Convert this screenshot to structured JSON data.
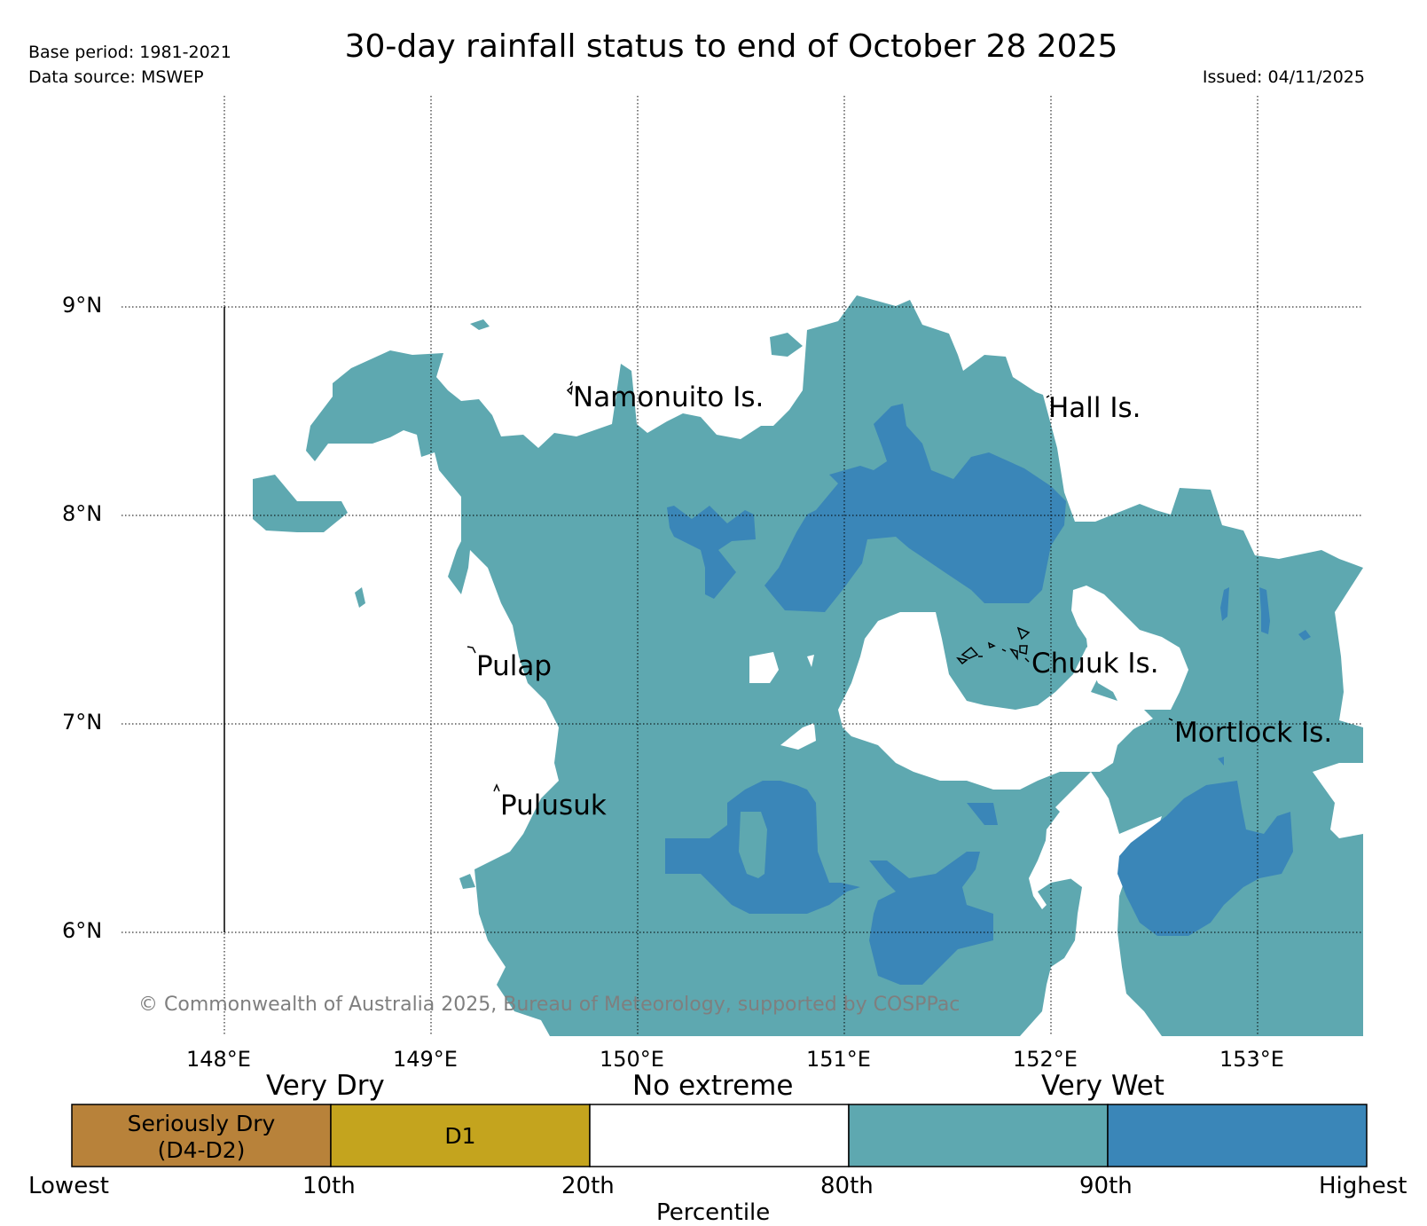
{
  "header": {
    "title": "30-day rainfall status to end of October 28 2025",
    "base_period": "Base period: 1981-2021",
    "data_source": "Data source: MSWEP",
    "issued": "Issued: 04/11/2025"
  },
  "map": {
    "lat_labels": [
      "9°N",
      "8°N",
      "7°N",
      "6°N"
    ],
    "lon_labels": [
      "148°E",
      "149°E",
      "150°E",
      "151°E",
      "152°E",
      "153°E"
    ],
    "places": {
      "namonuito": "Namonuito Is.",
      "hall": "Hall Is.",
      "pulap": "Pulap",
      "chuuk": "Chuuk Is.",
      "mortlock": "Mortlock Is.",
      "pulusuk": "Pulusuk"
    },
    "copyright": "© Commonwealth of Australia 2025, Bureau of Meteorology, supported by COSPPac",
    "colors": {
      "above_80th": "#5ea8b0",
      "above_90th": "#3a86b8",
      "no_extreme": "#ffffff"
    }
  },
  "legend": {
    "very_dry": "Very Dry",
    "no_extreme": "No extreme",
    "very_wet": "Very Wet",
    "cells": {
      "seriously_dry_line1": "Seriously Dry",
      "seriously_dry_line2": "(D4-D2)",
      "d1": "D1"
    },
    "ticks": {
      "lowest": "Lowest",
      "p10": "10th",
      "p20": "20th",
      "p80": "80th",
      "p90": "90th",
      "highest": "Highest"
    },
    "axis_label": "Percentile",
    "colors": {
      "seriously_dry": "#b8823a",
      "d1": "#c4a41e",
      "no_extreme": "#ffffff",
      "wet_80": "#5ea8b0",
      "wet_90": "#3a86b8"
    }
  }
}
